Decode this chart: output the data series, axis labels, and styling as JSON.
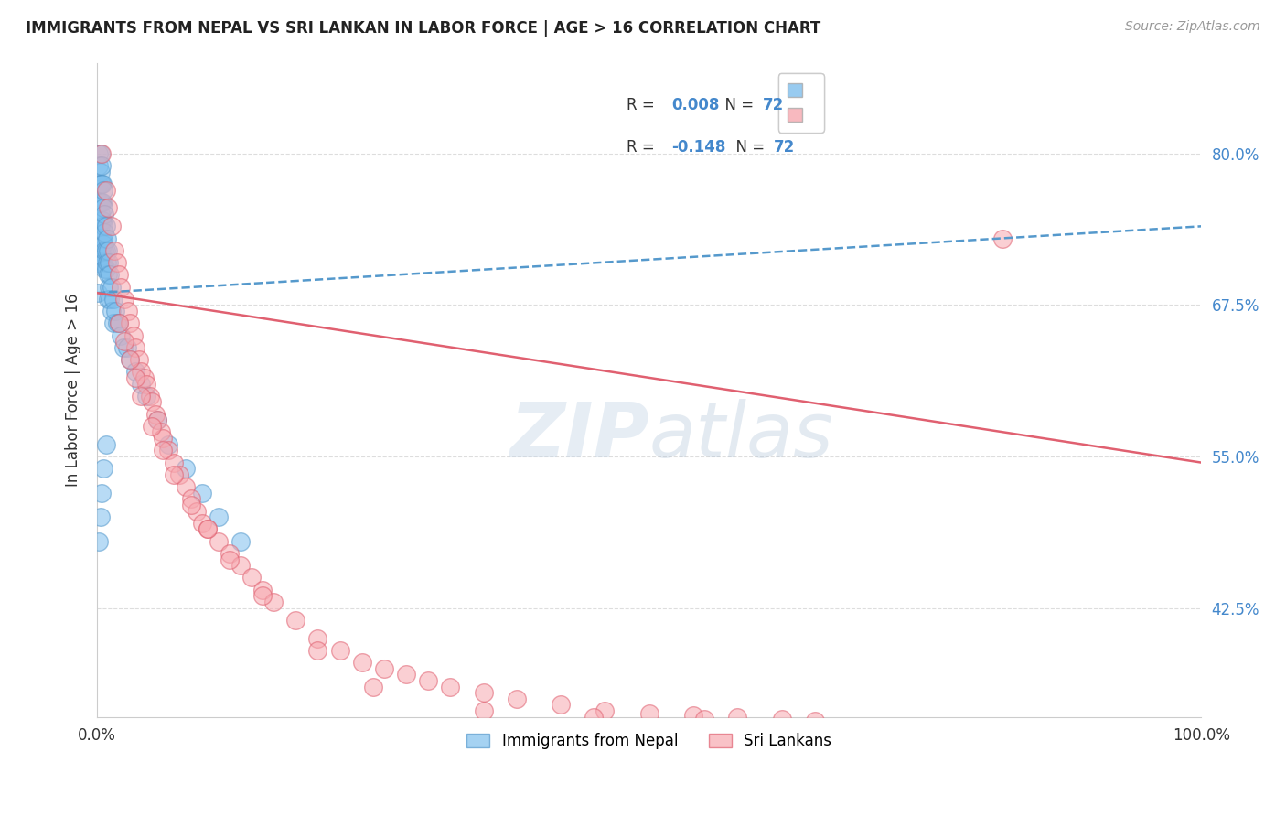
{
  "title": "IMMIGRANTS FROM NEPAL VS SRI LANKAN IN LABOR FORCE | AGE > 16 CORRELATION CHART",
  "source": "Source: ZipAtlas.com",
  "ylabel": "In Labor Force | Age > 16",
  "ytick_labels": [
    "80.0%",
    "67.5%",
    "55.0%",
    "42.5%"
  ],
  "ytick_values": [
    0.8,
    0.675,
    0.55,
    0.425
  ],
  "xlim": [
    0.0,
    1.0
  ],
  "ylim": [
    0.335,
    0.875
  ],
  "nepal_color": "#7fbfed",
  "nepal_edge_color": "#5599cc",
  "srilanka_color": "#f7a8b0",
  "srilanka_edge_color": "#e06070",
  "nepal_line_color": "#5599cc",
  "srilanka_line_color": "#e06070",
  "background_color": "#ffffff",
  "grid_color": "#dddddd",
  "nepal_R": "0.008",
  "nepal_N": "72",
  "srilanka_R": "-0.148",
  "srilanka_N": "72",
  "nepal_label": "Immigrants from Nepal",
  "srilanka_label": "Sri Lankans",
  "nepal_x": [
    0.001,
    0.001,
    0.001,
    0.002,
    0.002,
    0.002,
    0.002,
    0.002,
    0.003,
    0.003,
    0.003,
    0.003,
    0.003,
    0.003,
    0.003,
    0.004,
    0.004,
    0.004,
    0.004,
    0.004,
    0.004,
    0.005,
    0.005,
    0.005,
    0.005,
    0.005,
    0.006,
    0.006,
    0.006,
    0.006,
    0.006,
    0.007,
    0.007,
    0.007,
    0.007,
    0.008,
    0.008,
    0.008,
    0.009,
    0.009,
    0.01,
    0.01,
    0.01,
    0.011,
    0.011,
    0.012,
    0.012,
    0.013,
    0.013,
    0.015,
    0.015,
    0.017,
    0.018,
    0.02,
    0.022,
    0.024,
    0.027,
    0.03,
    0.035,
    0.04,
    0.045,
    0.055,
    0.065,
    0.08,
    0.095,
    0.11,
    0.13,
    0.002,
    0.003,
    0.004,
    0.006,
    0.008
  ],
  "nepal_y": [
    0.72,
    0.71,
    0.685,
    0.8,
    0.79,
    0.775,
    0.76,
    0.745,
    0.8,
    0.785,
    0.775,
    0.76,
    0.75,
    0.74,
    0.72,
    0.79,
    0.775,
    0.76,
    0.745,
    0.73,
    0.715,
    0.775,
    0.76,
    0.745,
    0.73,
    0.715,
    0.77,
    0.755,
    0.74,
    0.725,
    0.71,
    0.75,
    0.735,
    0.72,
    0.705,
    0.74,
    0.72,
    0.705,
    0.73,
    0.71,
    0.72,
    0.7,
    0.68,
    0.71,
    0.69,
    0.7,
    0.68,
    0.69,
    0.67,
    0.68,
    0.66,
    0.67,
    0.66,
    0.66,
    0.65,
    0.64,
    0.64,
    0.63,
    0.62,
    0.61,
    0.6,
    0.58,
    0.56,
    0.54,
    0.52,
    0.5,
    0.48,
    0.48,
    0.5,
    0.52,
    0.54,
    0.56
  ],
  "srilanka_x": [
    0.004,
    0.008,
    0.01,
    0.013,
    0.016,
    0.018,
    0.02,
    0.022,
    0.025,
    0.028,
    0.03,
    0.033,
    0.035,
    0.038,
    0.04,
    0.043,
    0.045,
    0.048,
    0.05,
    0.053,
    0.055,
    0.058,
    0.06,
    0.065,
    0.07,
    0.075,
    0.08,
    0.085,
    0.09,
    0.095,
    0.1,
    0.11,
    0.12,
    0.13,
    0.14,
    0.15,
    0.16,
    0.18,
    0.2,
    0.22,
    0.24,
    0.26,
    0.28,
    0.3,
    0.32,
    0.35,
    0.38,
    0.42,
    0.46,
    0.5,
    0.54,
    0.58,
    0.62,
    0.02,
    0.025,
    0.03,
    0.035,
    0.04,
    0.05,
    0.06,
    0.07,
    0.085,
    0.1,
    0.12,
    0.15,
    0.2,
    0.25,
    0.35,
    0.45,
    0.55,
    0.65,
    0.82
  ],
  "srilanka_y": [
    0.8,
    0.77,
    0.755,
    0.74,
    0.72,
    0.71,
    0.7,
    0.69,
    0.68,
    0.67,
    0.66,
    0.65,
    0.64,
    0.63,
    0.62,
    0.615,
    0.61,
    0.6,
    0.595,
    0.585,
    0.58,
    0.57,
    0.565,
    0.555,
    0.545,
    0.535,
    0.525,
    0.515,
    0.505,
    0.495,
    0.49,
    0.48,
    0.47,
    0.46,
    0.45,
    0.44,
    0.43,
    0.415,
    0.4,
    0.39,
    0.38,
    0.375,
    0.37,
    0.365,
    0.36,
    0.355,
    0.35,
    0.345,
    0.34,
    0.338,
    0.336,
    0.335,
    0.333,
    0.66,
    0.645,
    0.63,
    0.615,
    0.6,
    0.575,
    0.555,
    0.535,
    0.51,
    0.49,
    0.465,
    0.435,
    0.39,
    0.36,
    0.34,
    0.335,
    0.333,
    0.332,
    0.73
  ],
  "nepal_trend_x": [
    0.0,
    1.0
  ],
  "nepal_trend_y": [
    0.685,
    0.74
  ],
  "srilanka_trend_x": [
    0.0,
    1.0
  ],
  "srilanka_trend_y": [
    0.685,
    0.545
  ]
}
